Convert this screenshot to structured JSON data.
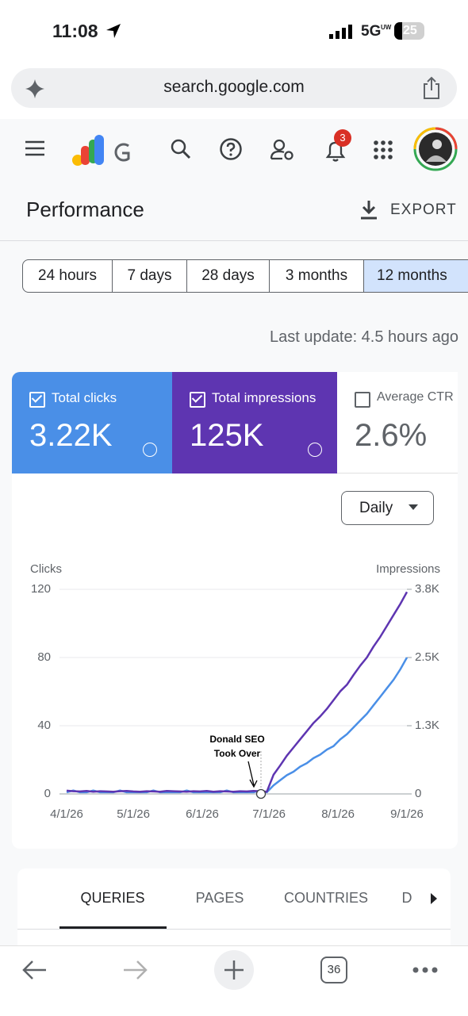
{
  "status": {
    "time": "11:08",
    "network": "5G",
    "network_suffix": "UW",
    "battery": "25"
  },
  "browser": {
    "url": "search.google.com",
    "tab_count": "36"
  },
  "header": {
    "notifications": "3"
  },
  "page": {
    "title": "Performance",
    "export": "EXPORT",
    "ranges": [
      "24 hours",
      "7 days",
      "28 days",
      "3 months",
      "12 months"
    ],
    "last_update": "Last update: 4.5 hours ago",
    "metrics": [
      {
        "label": "Total clicks",
        "value": "3.22K"
      },
      {
        "label": "Total impressions",
        "value": "125K"
      },
      {
        "label": "Average CTR",
        "value": "2.6%"
      }
    ],
    "granularity": "Daily",
    "tabs": [
      "QUERIES",
      "PAGES",
      "COUNTRIES",
      "D"
    ]
  },
  "chart_data": {
    "type": "line",
    "ylabel": "Clicks",
    "y2label": "Impressions",
    "annotation": [
      "Donald SEO",
      "Took Over"
    ],
    "x": [
      "4/1/26",
      "4/4/26",
      "4/7/26",
      "4/10/26",
      "4/13/26",
      "4/16/26",
      "4/19/26",
      "4/22/26",
      "4/25/26",
      "4/28/26",
      "5/1/26",
      "5/4/26",
      "5/7/26",
      "5/10/26",
      "5/13/26",
      "5/16/26",
      "5/19/26",
      "5/22/26",
      "5/25/26",
      "5/28/26",
      "5/31/26",
      "6/3/26",
      "6/6/26",
      "6/9/26",
      "6/12/26",
      "6/15/26",
      "6/18/26",
      "6/21/26",
      "6/24/26",
      "6/27/26",
      "6/30/26",
      "7/3/26",
      "7/6/26",
      "7/9/26",
      "7/12/26",
      "7/15/26",
      "7/18/26",
      "7/21/26",
      "7/24/26",
      "7/27/26",
      "7/30/26",
      "8/2/26",
      "8/5/26",
      "8/8/26",
      "8/11/26",
      "8/14/26",
      "8/17/26",
      "8/20/26",
      "8/23/26",
      "8/26/26",
      "8/29/26",
      "9/1/26"
    ],
    "xlim": [
      "4/1/26",
      "9/1/26"
    ],
    "xticks": [
      "4/1/26",
      "5/1/26",
      "6/1/26",
      "7/1/26",
      "8/1/26",
      "9/1/26"
    ],
    "ylim": [
      0,
      120
    ],
    "yticks": [
      0,
      40,
      80,
      120
    ],
    "y2lim": [
      0,
      3750
    ],
    "y2ticks": [
      0,
      {
        "value": 1250,
        "label": "1.3K"
      },
      {
        "value": 2500,
        "label": "2.5K"
      },
      {
        "value": 3750,
        "label": "3.8K"
      }
    ],
    "grid": true,
    "series": [
      {
        "color": "#4a8fe7",
        "axis": "y",
        "values": [
          1,
          2,
          1,
          1,
          2,
          1,
          1,
          1,
          2,
          1,
          1,
          1,
          1,
          2,
          1,
          1,
          1,
          1,
          2,
          1,
          1,
          1,
          1,
          1,
          2,
          1,
          1,
          1,
          1,
          2,
          1,
          5,
          8,
          11,
          13,
          16,
          18,
          21,
          23,
          26,
          28,
          32,
          35,
          39,
          43,
          47,
          52,
          57,
          62,
          67,
          73,
          80
        ]
      },
      {
        "color": "#5e35b1",
        "axis": "y2",
        "values": [
          60,
          50,
          45,
          55,
          40,
          50,
          45,
          40,
          50,
          55,
          45,
          40,
          50,
          45,
          40,
          55,
          50,
          45,
          40,
          50,
          45,
          55,
          40,
          50,
          45,
          40,
          50,
          45,
          55,
          50,
          40,
          350,
          520,
          700,
          850,
          1000,
          1150,
          1300,
          1420,
          1560,
          1720,
          1880,
          2000,
          2180,
          2350,
          2500,
          2700,
          2880,
          3080,
          3280,
          3480,
          3700
        ]
      }
    ]
  }
}
